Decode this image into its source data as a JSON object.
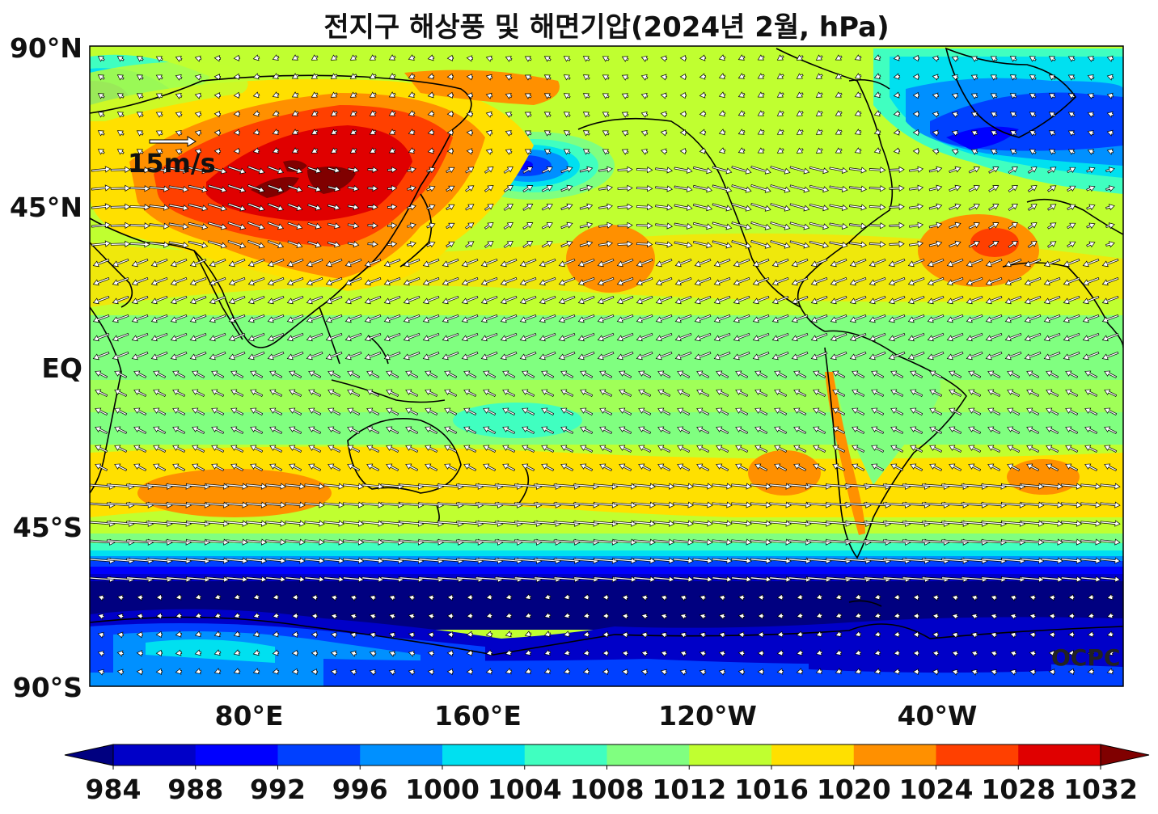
{
  "title": "전지구 해상풍 및 해면기압(2024년 2월, hPa)",
  "lat_labels": [
    "90°N",
    "45°N",
    "EQ",
    "45°S",
    "90°S"
  ],
  "lon_labels": [
    "80°E",
    "160°E",
    "120°W",
    "40°W"
  ],
  "wind_scale_label": "15m/s",
  "watermark": "OCPC",
  "colorbar": {
    "ticks": [
      "984",
      "988",
      "992",
      "996",
      "1000",
      "1004",
      "1008",
      "1012",
      "1016",
      "1020",
      "1024",
      "1028",
      "1032"
    ],
    "colors": [
      "#000080",
      "#0000c8",
      "#0000ff",
      "#0040ff",
      "#0090ff",
      "#00e0f0",
      "#40ffc0",
      "#80ff80",
      "#c0ff30",
      "#ffe000",
      "#ff9000",
      "#ff4000",
      "#e00000",
      "#800000"
    ]
  }
}
